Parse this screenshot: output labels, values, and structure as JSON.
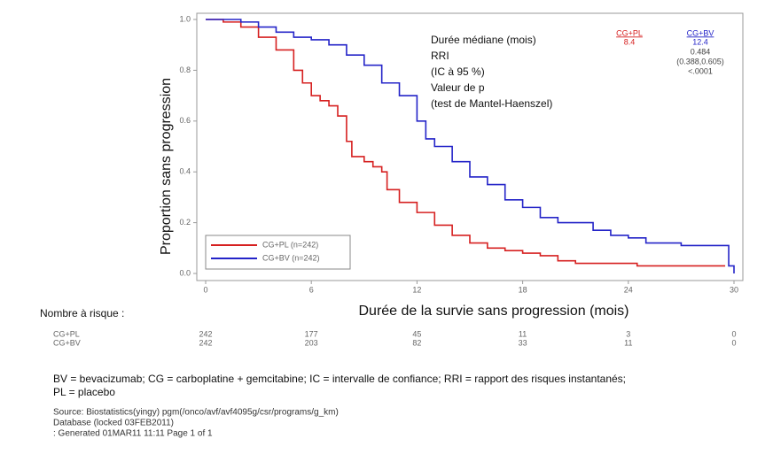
{
  "chart_data": {
    "type": "step",
    "xlabel": "Durée de la survie sans progression (mois)",
    "ylabel": "Proportion sans progression",
    "xlim": [
      0,
      30
    ],
    "ylim": [
      0,
      1
    ],
    "xticks": [
      0,
      6,
      12,
      18,
      24,
      30
    ],
    "yticks": [
      {
        "value": 0,
        "label": "0.0"
      },
      0.2,
      0.4,
      0.6,
      0.8,
      {
        "value": 1,
        "label": "1.0"
      }
    ],
    "series": [
      {
        "name": "CG+PL (n=242)",
        "color": "#d62020",
        "x": [
          0,
          1,
          2,
          3,
          4,
          5,
          5.5,
          6,
          6.5,
          7,
          7.5,
          8,
          8.3,
          9,
          9.5,
          10,
          10.3,
          11,
          12,
          13,
          14,
          15,
          16,
          17,
          18,
          19,
          20,
          21,
          24.5,
          29.5
        ],
        "values": [
          1.0,
          0.99,
          0.97,
          0.93,
          0.88,
          0.8,
          0.75,
          0.7,
          0.68,
          0.66,
          0.62,
          0.52,
          0.46,
          0.44,
          0.42,
          0.4,
          0.33,
          0.28,
          0.24,
          0.19,
          0.15,
          0.12,
          0.1,
          0.09,
          0.08,
          0.07,
          0.05,
          0.04,
          0.03,
          0.03
        ]
      },
      {
        "name": "CG+BV (n=242)",
        "color": "#2424c8",
        "x": [
          0,
          2,
          3,
          4,
          5,
          6,
          7,
          8,
          9,
          10,
          11,
          12,
          12.5,
          13,
          14,
          15,
          16,
          17,
          18,
          19,
          20,
          22,
          23,
          24,
          25,
          27,
          29.5,
          29.7,
          30
        ],
        "values": [
          1.0,
          0.99,
          0.97,
          0.95,
          0.93,
          0.92,
          0.9,
          0.86,
          0.82,
          0.75,
          0.7,
          0.6,
          0.53,
          0.5,
          0.44,
          0.38,
          0.35,
          0.29,
          0.26,
          0.22,
          0.2,
          0.17,
          0.15,
          0.14,
          0.12,
          0.11,
          0.11,
          0.03,
          0.0
        ]
      }
    ],
    "annotations": [
      "Durée médiane (mois)",
      "RRI",
      "(IC à 95 %)",
      "Valeur de p",
      "(test de Mantel-Haenszel)"
    ],
    "stats": [
      {
        "name": "CG+PL",
        "color": "#d62020",
        "lines": [
          "8.4"
        ]
      },
      {
        "name": "CG+BV",
        "color": "#2424c8",
        "lines": [
          "12.4",
          "0.484",
          "(0.388,0.605)",
          "<.0001"
        ]
      }
    ],
    "risk_table": {
      "label": "Nombre à risque :",
      "rows": [
        {
          "name": "CG+PL",
          "color": "#d62020",
          "values": [
            242,
            177,
            45,
            11,
            3,
            0
          ]
        },
        {
          "name": "CG+BV",
          "color": "#2424c8",
          "values": [
            242,
            203,
            82,
            33,
            11,
            0
          ]
        }
      ]
    }
  },
  "footnote": [
    "BV = bevacizumab; CG = carboplatine + gemcitabine; IC = intervalle de confiance; RRI = rapport des risques instantanés;",
    "PL = placebo"
  ],
  "source": [
    "Source: Biostatistics(yingy) pgm(/onco/avf/avf4095g/csr/programs/g_km)",
    "Database (locked 03FEB2011)",
    ": Generated 01MAR11 11:11  Page 1 of 1"
  ]
}
